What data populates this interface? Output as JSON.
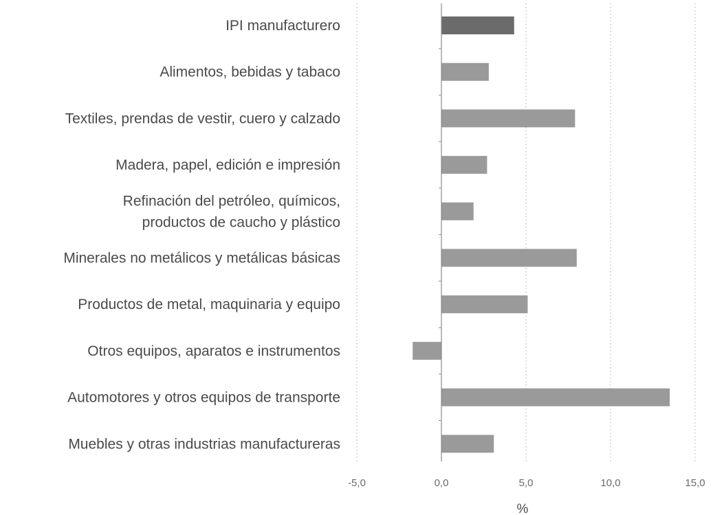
{
  "chart_data": {
    "type": "bar",
    "orientation": "horizontal",
    "title": "",
    "xlabel": "%",
    "ylabel": "",
    "xlim": [
      -5.0,
      15.0
    ],
    "xticks": [
      -5.0,
      0.0,
      5.0,
      10.0,
      15.0
    ],
    "xtick_labels": [
      "-5,0",
      "0,0",
      "5,0",
      "10,0",
      "15,0"
    ],
    "grid": "vertical dotted",
    "legend": "none",
    "categories": [
      [
        "IPI manufacturero"
      ],
      [
        "Alimentos, bebidas y tabaco"
      ],
      [
        "Textiles, prendas de vestir, cuero y calzado"
      ],
      [
        "Madera, papel, edición e impresión"
      ],
      [
        "Refinación del petróleo, químicos,",
        "productos de caucho y plástico"
      ],
      [
        "Minerales no metálicos y metálicas básicas"
      ],
      [
        "Productos de metal, maquinaria y equipo"
      ],
      [
        "Otros equipos, aparatos e instrumentos"
      ],
      [
        "Automotores y otros equipos de transporte"
      ],
      [
        "Muebles y otras industrias manufactureras"
      ]
    ],
    "values": [
      4.3,
      2.8,
      7.9,
      2.7,
      1.9,
      8.0,
      5.1,
      -1.7,
      13.5,
      3.1
    ],
    "colors": {
      "highlight": "#6b6b6b",
      "bar": "#9a9a9a",
      "grid": "#c8c8c8",
      "axis": "#8a8a8a",
      "text": "#4a4a4a"
    }
  }
}
